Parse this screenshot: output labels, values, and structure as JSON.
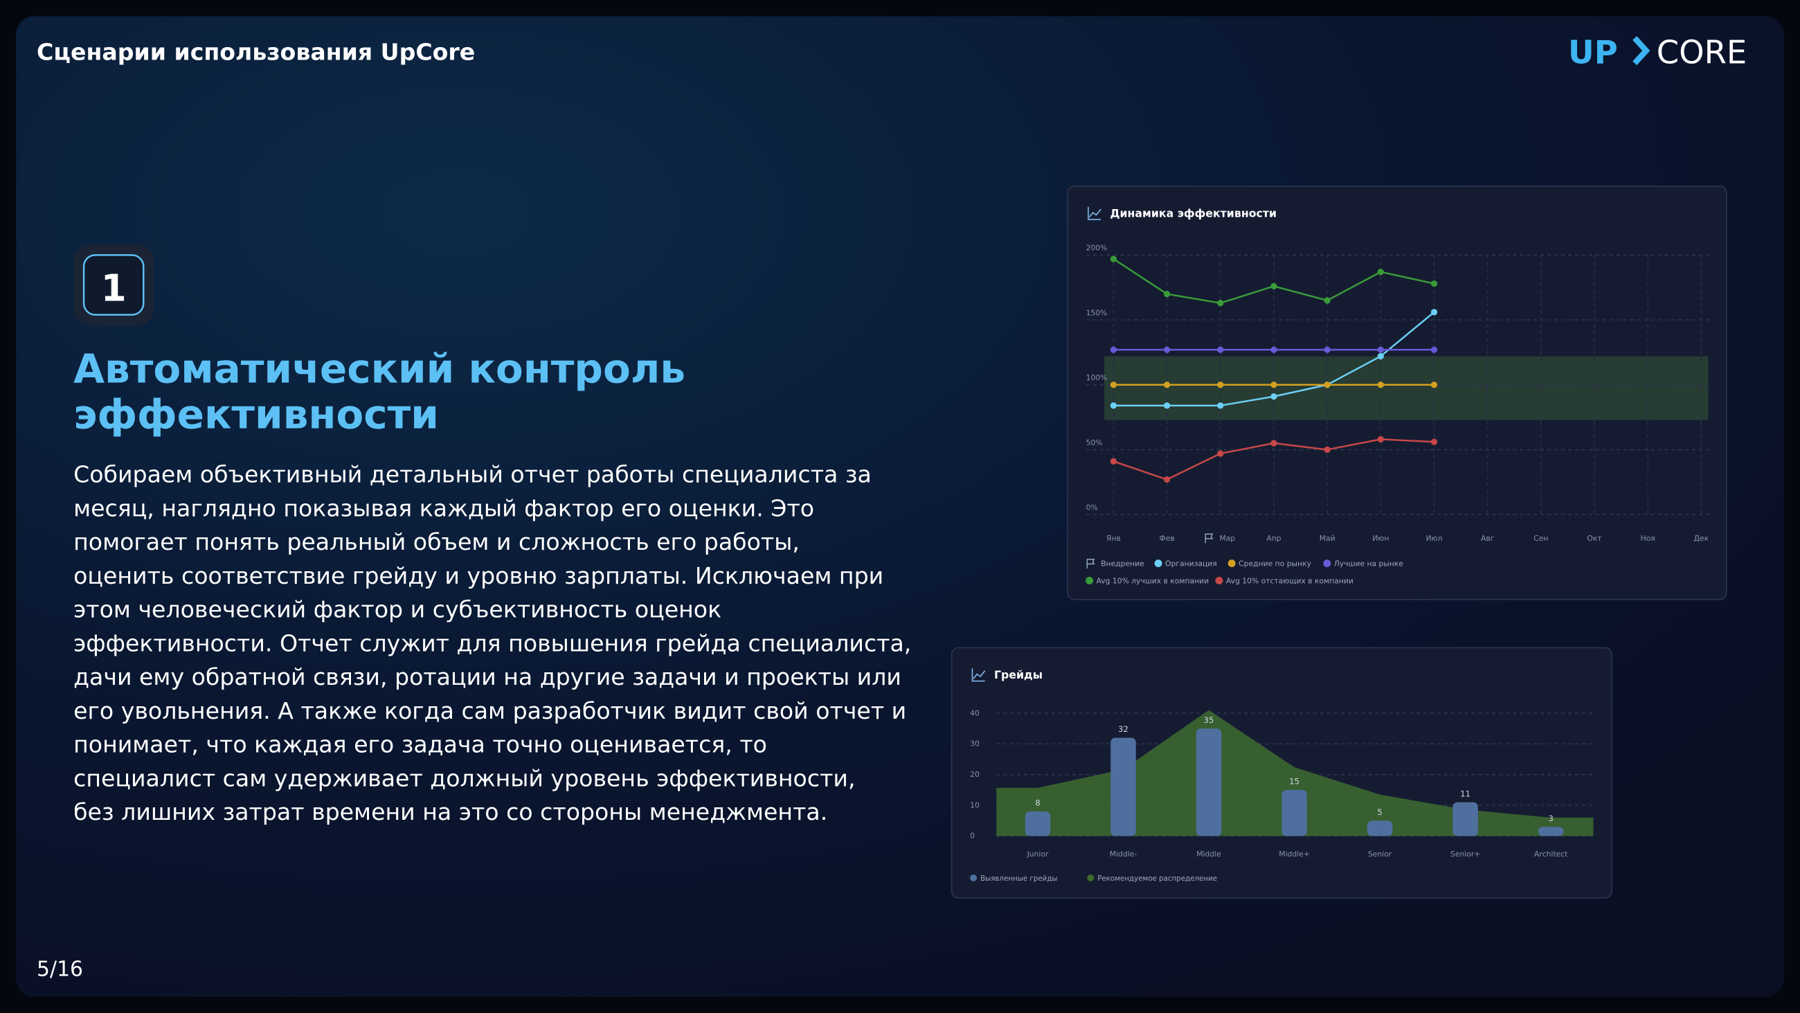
{
  "header": {
    "title": "Сценарии использования UpCore",
    "logo_left": "UP",
    "logo_right": "CORE"
  },
  "badge": "1",
  "heading": [
    "Автоматический контроль",
    "эффективности"
  ],
  "body": [
    "Собираем объективный детальный отчет работы специалиста за",
    "месяц, наглядно показывая каждый фактор его оценки. Это",
    "помогает понять реальный объем и сложность его работы,",
    "оценить соответствие грейду и уровню зарплаты. Исключаем при",
    "этом человеческий фактор и субъективность оценок",
    "эффективности. Отчет служит для повышения грейда специалиста,",
    "дачи ему обратной связи, ротации на другие задачи и проекты или",
    "его увольнения. А также когда сам разработчик видит свой отчет и",
    "понимает, что каждая его задача точно оценивается, то",
    "специалист сам удерживает должный уровень эффективности,",
    "без лишних затрат времени на это со стороны менеджмента."
  ],
  "page": "5/16",
  "chart_data": [
    {
      "type": "line",
      "title": "Динамика эффективности",
      "categories": [
        "Янв",
        "Фев",
        "Мар",
        "Апр",
        "Май",
        "Июн",
        "Июл",
        "Авг",
        "Сен",
        "Окт",
        "Ноя",
        "Дек"
      ],
      "ylim": [
        0,
        200
      ],
      "yticks": [
        {
          "value": 0,
          "label": "0%"
        },
        {
          "value": 50,
          "label": "50%"
        },
        {
          "value": 100,
          "label": "100%"
        },
        {
          "value": 150,
          "label": "150%"
        },
        {
          "value": 200,
          "label": "200%"
        }
      ],
      "grid": true,
      "band": [
        73,
        122
      ],
      "legend_extra": "Внедрение",
      "series": [
        {
          "name": "Организация",
          "color": "#6ccff6",
          "values": [
            84,
            84,
            84,
            91,
            100,
            122,
            156,
            null,
            null,
            null,
            null,
            null
          ]
        },
        {
          "name": "Средние по рынку",
          "color": "#d4a020",
          "values": [
            100,
            100,
            100,
            100,
            100,
            100,
            100,
            null,
            null,
            null,
            null,
            null
          ]
        },
        {
          "name": "Лучшие на рынке",
          "color": "#6a5ad8",
          "values": [
            127,
            127,
            127,
            127,
            127,
            127,
            127,
            null,
            null,
            null,
            null,
            null
          ]
        },
        {
          "name": "Avg 10% лучших в компании",
          "color": "#3a9a3a",
          "values": [
            197,
            170,
            163,
            176,
            165,
            187,
            178,
            null,
            null,
            null,
            null,
            null
          ]
        },
        {
          "name": "Avg 10% отстающих в компании",
          "color": "#c84848",
          "values": [
            41,
            27,
            47,
            55,
            50,
            58,
            56,
            null,
            null,
            null,
            null,
            null
          ]
        }
      ]
    },
    {
      "type": "bar",
      "title": "Грейды",
      "categories": [
        "Junior",
        "Middle-",
        "Middle",
        "Middle+",
        "Senior",
        "Senior+",
        "Architect"
      ],
      "ylim": [
        0,
        40
      ],
      "yticks": [
        0,
        10,
        20,
        30,
        40
      ],
      "grid": true,
      "series": [
        {
          "name": "Выявленные грейды",
          "color": "#4f6f9f",
          "values": [
            8,
            32,
            35,
            15,
            5,
            11,
            3
          ]
        },
        {
          "name": "Рекомендуемое распределение",
          "color": "#3d6b30",
          "values": [
            15.7,
            21.7,
            41,
            22.4,
            13.5,
            8.6,
            6
          ]
        }
      ]
    }
  ]
}
